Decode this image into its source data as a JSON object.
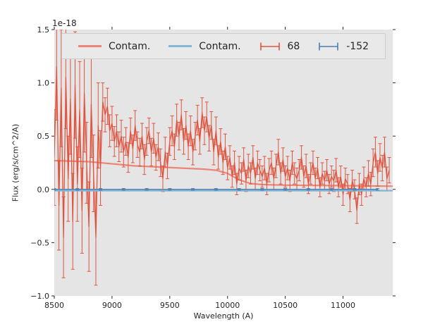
{
  "figure": {
    "offset_label": "1e-18",
    "xlabel": "Wavelength (A)",
    "ylabel": "Flux (erg/s/cm^2/A)"
  },
  "colors": {
    "red_line": "#ed8576",
    "blue_line": "#85b5d4",
    "red_errorbar": "#e0543f",
    "blue_errorbar": "#4a7fb0",
    "axes_background": "#e5e5e5",
    "figure_background": "#ffffff",
    "legend_background": "#e9e9e9",
    "legend_border": "#cccccc",
    "text": "#262626"
  },
  "legend": {
    "items": [
      {
        "label": "Contam.",
        "swatch": "line-red"
      },
      {
        "label": "Contam.",
        "swatch": "line-blue"
      },
      {
        "label": "68",
        "swatch": "errorbar-red"
      },
      {
        "label": "-152",
        "swatch": "errorbar-blue"
      }
    ]
  },
  "chart_data": {
    "type": "line",
    "title": "",
    "y_offset_label": "1e-18",
    "xlabel": "Wavelength (A)",
    "ylabel": "Flux (erg/s/cm^2/A)",
    "xlim": [
      8500,
      11430
    ],
    "ylim": [
      -1.0,
      1.5
    ],
    "xticks": [
      8500,
      9000,
      9500,
      10000,
      10500,
      11000
    ],
    "yticks": [
      -1.0,
      -0.5,
      0.0,
      0.5,
      1.0,
      1.5
    ],
    "grid": false,
    "legend_position": "upper center, horizontal, inside axes",
    "draw_order": [
      0,
      2,
      1,
      3
    ],
    "series": [
      {
        "name": "Contam.",
        "type": "line",
        "color": "#ed8576",
        "linewidth": 2.2,
        "x": [
          8500,
          8800,
          9000,
          9200,
          9400,
          9600,
          9800,
          9900,
          10000,
          10100,
          10200,
          10300,
          10500,
          11000,
          11430
        ],
        "y": [
          0.27,
          0.26,
          0.24,
          0.22,
          0.21,
          0.2,
          0.19,
          0.18,
          0.15,
          0.09,
          0.055,
          0.045,
          0.04,
          0.035,
          0.03
        ]
      },
      {
        "name": "Contam.",
        "type": "line",
        "color": "#85b5d4",
        "linewidth": 2.2,
        "x": [
          8500,
          11430
        ],
        "y": [
          -0.012,
          -0.012
        ]
      },
      {
        "name": "68",
        "type": "errorbar",
        "color": "#e0543f",
        "linewidth": 1.3,
        "x": {
          "start": 8500,
          "step": 20,
          "count": 146
        },
        "y": [
          0.3,
          1.15,
          -0.15,
          0.95,
          -0.45,
          1.05,
          0.1,
          0.85,
          -0.3,
          0.98,
          0.05,
          0.75,
          -0.2,
          0.9,
          0.25,
          -0.35,
          0.8,
          0.15,
          -0.45,
          0.6,
          0.2,
          0.82,
          0.7,
          0.78,
          0.55,
          0.62,
          0.45,
          0.55,
          0.4,
          0.5,
          0.35,
          0.45,
          0.3,
          0.55,
          0.38,
          0.6,
          0.42,
          0.35,
          0.5,
          0.28,
          0.45,
          0.55,
          0.35,
          0.48,
          0.3,
          0.4,
          0.25,
          0.1,
          0.35,
          0.22,
          0.45,
          0.55,
          0.4,
          0.65,
          0.5,
          0.7,
          0.45,
          0.6,
          0.4,
          0.55,
          0.35,
          0.5,
          0.65,
          0.45,
          0.72,
          0.55,
          0.68,
          0.48,
          0.6,
          0.35,
          0.55,
          0.3,
          0.45,
          0.25,
          0.4,
          0.2,
          0.3,
          0.12,
          0.25,
          0.05,
          0.2,
          0.15,
          0.28,
          0.08,
          0.22,
          0.15,
          0.3,
          0.1,
          0.25,
          0.18,
          0.12,
          0.2,
          0.05,
          0.18,
          0.25,
          0.1,
          0.22,
          0.35,
          0.15,
          0.28,
          0.12,
          0.2,
          0.08,
          0.25,
          0.15,
          0.1,
          0.18,
          0.3,
          0.12,
          0.22,
          0.05,
          0.15,
          0.25,
          0.1,
          0.2,
          0.02,
          0.15,
          0.08,
          0.18,
          0.05,
          0.12,
          0.08,
          0.18,
          0.02,
          0.12,
          -0.05,
          0.1,
          0.05,
          -0.1,
          0.08,
          0.0,
          -0.2,
          0.05,
          -0.05,
          0.1,
          0.02,
          0.15,
          0.05,
          0.25,
          0.35,
          0.15,
          0.3,
          0.2,
          0.35,
          0.1,
          0.18
        ],
        "yerr": [
          0.45,
          0.5,
          0.42,
          0.55,
          0.38,
          0.48,
          0.4,
          0.52,
          0.45,
          0.5,
          0.35,
          0.45,
          0.4,
          0.55,
          0.38,
          0.42,
          0.5,
          0.36,
          0.45,
          0.4,
          0.35,
          0.18,
          0.16,
          0.17,
          0.15,
          0.16,
          0.14,
          0.15,
          0.14,
          0.15,
          0.14,
          0.13,
          0.14,
          0.12,
          0.13,
          0.14,
          0.12,
          0.13,
          0.12,
          0.14,
          0.13,
          0.12,
          0.13,
          0.14,
          0.12,
          0.13,
          0.13,
          0.12,
          0.14,
          0.12,
          0.13,
          0.14,
          0.12,
          0.15,
          0.13,
          0.14,
          0.12,
          0.13,
          0.12,
          0.14,
          0.12,
          0.13,
          0.14,
          0.12,
          0.14,
          0.13,
          0.14,
          0.12,
          0.13,
          0.12,
          0.13,
          0.11,
          0.12,
          0.11,
          0.12,
          0.11,
          0.11,
          0.1,
          0.11,
          0.1,
          0.11,
          0.1,
          0.11,
          0.1,
          0.11,
          0.1,
          0.11,
          0.1,
          0.11,
          0.1,
          0.1,
          0.11,
          0.1,
          0.11,
          0.11,
          0.1,
          0.11,
          0.12,
          0.1,
          0.11,
          0.1,
          0.11,
          0.1,
          0.11,
          0.1,
          0.1,
          0.1,
          0.11,
          0.1,
          0.11,
          0.09,
          0.1,
          0.11,
          0.1,
          0.1,
          0.09,
          0.1,
          0.09,
          0.1,
          0.09,
          0.1,
          0.1,
          0.11,
          0.09,
          0.1,
          0.1,
          0.1,
          0.09,
          0.11,
          0.1,
          0.09,
          0.12,
          0.1,
          0.1,
          0.11,
          0.09,
          0.12,
          0.11,
          0.13,
          0.14,
          0.12,
          0.13,
          0.12,
          0.14,
          0.11,
          0.12
        ]
      },
      {
        "name": "-152",
        "type": "errorbar",
        "color": "#4a7fb0",
        "linewidth": 1.3,
        "x": {
          "start": 8500,
          "step": 200,
          "count": 15
        },
        "y": [
          0,
          0,
          0,
          0,
          0,
          0,
          0,
          0,
          0,
          0,
          0,
          0,
          0,
          0,
          0
        ],
        "yerr": [
          0.008,
          0.008,
          0.008,
          0.008,
          0.008,
          0.008,
          0.008,
          0.008,
          0.008,
          0.008,
          0.008,
          0.008,
          0.008,
          0.008,
          0.008
        ]
      }
    ]
  }
}
